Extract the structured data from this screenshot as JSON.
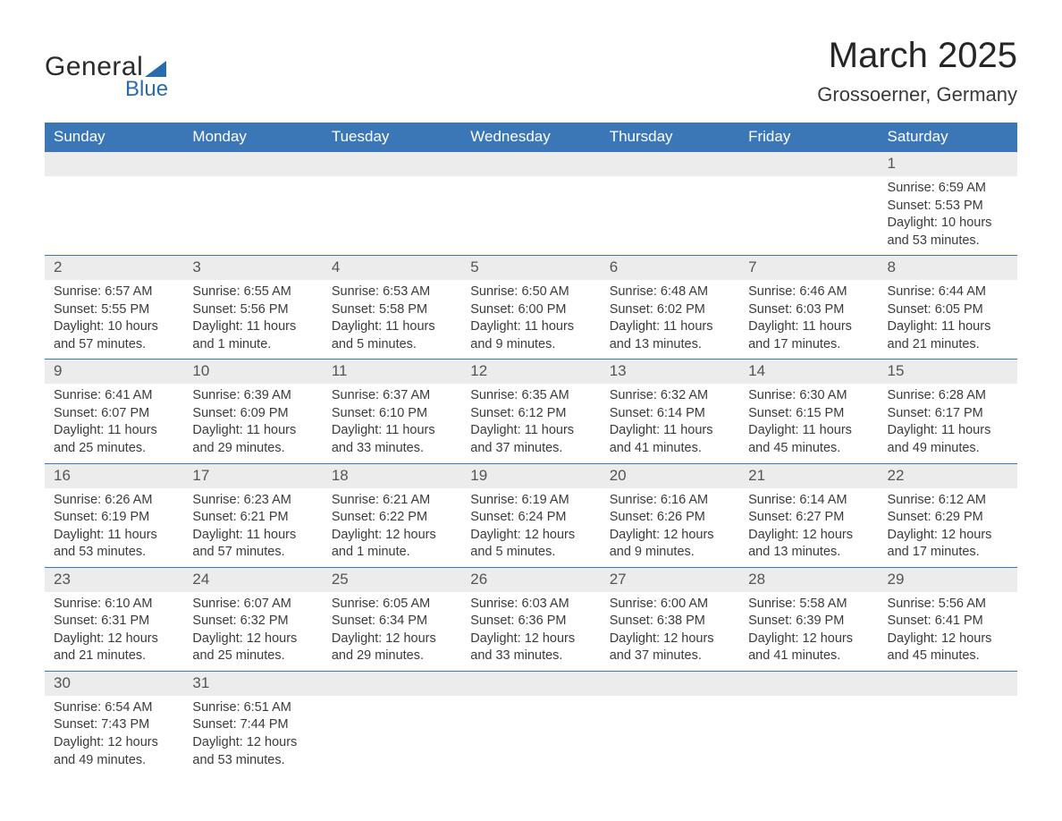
{
  "brand": {
    "word1": "General",
    "word2": "Blue",
    "accent": "#2a6bb0"
  },
  "title": "March 2025",
  "location": "Grossoerner, Germany",
  "header_bg": "#3b77b7",
  "daynum_bg": "#ececec",
  "row_border": "#3b77b7",
  "text_color": "#383838",
  "day_headers": [
    "Sunday",
    "Monday",
    "Tuesday",
    "Wednesday",
    "Thursday",
    "Friday",
    "Saturday"
  ],
  "weeks": [
    [
      null,
      null,
      null,
      null,
      null,
      null,
      {
        "n": "1",
        "sr": "6:59 AM",
        "ss": "5:53 PM",
        "dl": "10 hours and 53 minutes."
      }
    ],
    [
      {
        "n": "2",
        "sr": "6:57 AM",
        "ss": "5:55 PM",
        "dl": "10 hours and 57 minutes."
      },
      {
        "n": "3",
        "sr": "6:55 AM",
        "ss": "5:56 PM",
        "dl": "11 hours and 1 minute."
      },
      {
        "n": "4",
        "sr": "6:53 AM",
        "ss": "5:58 PM",
        "dl": "11 hours and 5 minutes."
      },
      {
        "n": "5",
        "sr": "6:50 AM",
        "ss": "6:00 PM",
        "dl": "11 hours and 9 minutes."
      },
      {
        "n": "6",
        "sr": "6:48 AM",
        "ss": "6:02 PM",
        "dl": "11 hours and 13 minutes."
      },
      {
        "n": "7",
        "sr": "6:46 AM",
        "ss": "6:03 PM",
        "dl": "11 hours and 17 minutes."
      },
      {
        "n": "8",
        "sr": "6:44 AM",
        "ss": "6:05 PM",
        "dl": "11 hours and 21 minutes."
      }
    ],
    [
      {
        "n": "9",
        "sr": "6:41 AM",
        "ss": "6:07 PM",
        "dl": "11 hours and 25 minutes."
      },
      {
        "n": "10",
        "sr": "6:39 AM",
        "ss": "6:09 PM",
        "dl": "11 hours and 29 minutes."
      },
      {
        "n": "11",
        "sr": "6:37 AM",
        "ss": "6:10 PM",
        "dl": "11 hours and 33 minutes."
      },
      {
        "n": "12",
        "sr": "6:35 AM",
        "ss": "6:12 PM",
        "dl": "11 hours and 37 minutes."
      },
      {
        "n": "13",
        "sr": "6:32 AM",
        "ss": "6:14 PM",
        "dl": "11 hours and 41 minutes."
      },
      {
        "n": "14",
        "sr": "6:30 AM",
        "ss": "6:15 PM",
        "dl": "11 hours and 45 minutes."
      },
      {
        "n": "15",
        "sr": "6:28 AM",
        "ss": "6:17 PM",
        "dl": "11 hours and 49 minutes."
      }
    ],
    [
      {
        "n": "16",
        "sr": "6:26 AM",
        "ss": "6:19 PM",
        "dl": "11 hours and 53 minutes."
      },
      {
        "n": "17",
        "sr": "6:23 AM",
        "ss": "6:21 PM",
        "dl": "11 hours and 57 minutes."
      },
      {
        "n": "18",
        "sr": "6:21 AM",
        "ss": "6:22 PM",
        "dl": "12 hours and 1 minute."
      },
      {
        "n": "19",
        "sr": "6:19 AM",
        "ss": "6:24 PM",
        "dl": "12 hours and 5 minutes."
      },
      {
        "n": "20",
        "sr": "6:16 AM",
        "ss": "6:26 PM",
        "dl": "12 hours and 9 minutes."
      },
      {
        "n": "21",
        "sr": "6:14 AM",
        "ss": "6:27 PM",
        "dl": "12 hours and 13 minutes."
      },
      {
        "n": "22",
        "sr": "6:12 AM",
        "ss": "6:29 PM",
        "dl": "12 hours and 17 minutes."
      }
    ],
    [
      {
        "n": "23",
        "sr": "6:10 AM",
        "ss": "6:31 PM",
        "dl": "12 hours and 21 minutes."
      },
      {
        "n": "24",
        "sr": "6:07 AM",
        "ss": "6:32 PM",
        "dl": "12 hours and 25 minutes."
      },
      {
        "n": "25",
        "sr": "6:05 AM",
        "ss": "6:34 PM",
        "dl": "12 hours and 29 minutes."
      },
      {
        "n": "26",
        "sr": "6:03 AM",
        "ss": "6:36 PM",
        "dl": "12 hours and 33 minutes."
      },
      {
        "n": "27",
        "sr": "6:00 AM",
        "ss": "6:38 PM",
        "dl": "12 hours and 37 minutes."
      },
      {
        "n": "28",
        "sr": "5:58 AM",
        "ss": "6:39 PM",
        "dl": "12 hours and 41 minutes."
      },
      {
        "n": "29",
        "sr": "5:56 AM",
        "ss": "6:41 PM",
        "dl": "12 hours and 45 minutes."
      }
    ],
    [
      {
        "n": "30",
        "sr": "6:54 AM",
        "ss": "7:43 PM",
        "dl": "12 hours and 49 minutes."
      },
      {
        "n": "31",
        "sr": "6:51 AM",
        "ss": "7:44 PM",
        "dl": "12 hours and 53 minutes."
      },
      null,
      null,
      null,
      null,
      null
    ]
  ],
  "labels": {
    "sunrise": "Sunrise: ",
    "sunset": "Sunset: ",
    "daylight": "Daylight: "
  }
}
